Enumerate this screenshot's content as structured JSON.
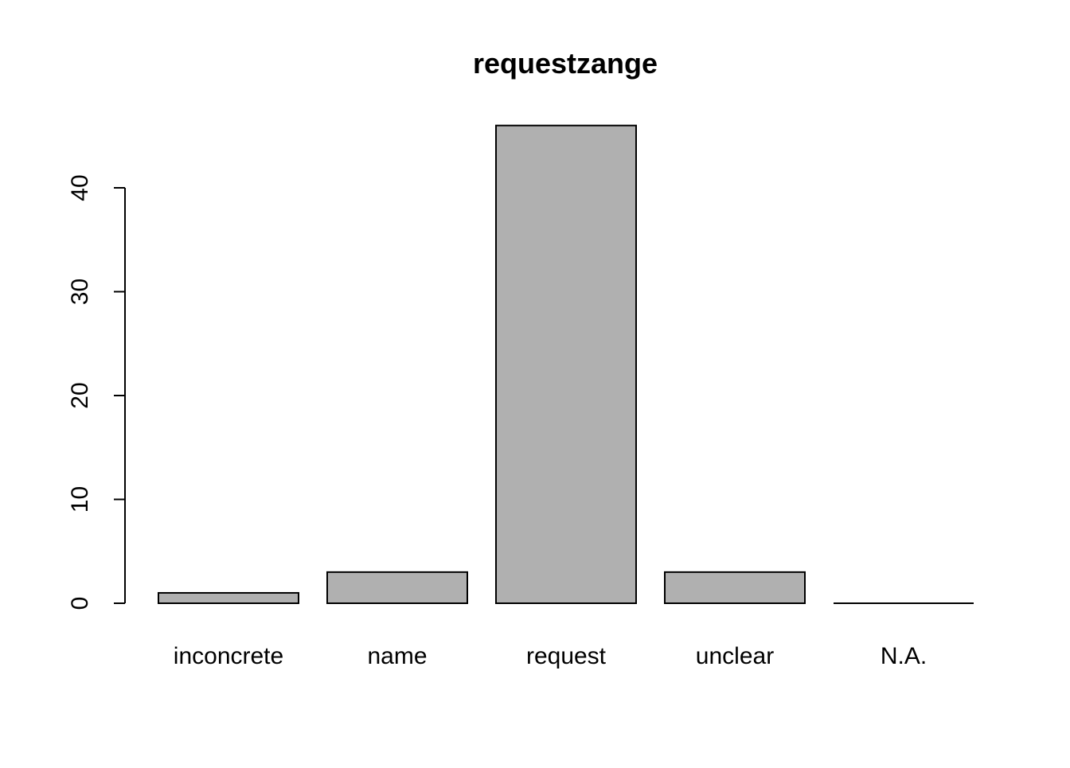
{
  "chart_data": {
    "type": "bar",
    "title": "requestzange",
    "xlabel": "",
    "ylabel": "",
    "categories": [
      "inconcrete",
      "name",
      "request",
      "unclear",
      "N.A."
    ],
    "values": [
      1,
      3,
      46,
      3,
      0
    ],
    "ylim": [
      0,
      46
    ],
    "yticks": [
      0,
      10,
      20,
      30,
      40
    ],
    "grid": false,
    "bar_color": "#b0b0b0",
    "border_color": "#000000"
  }
}
